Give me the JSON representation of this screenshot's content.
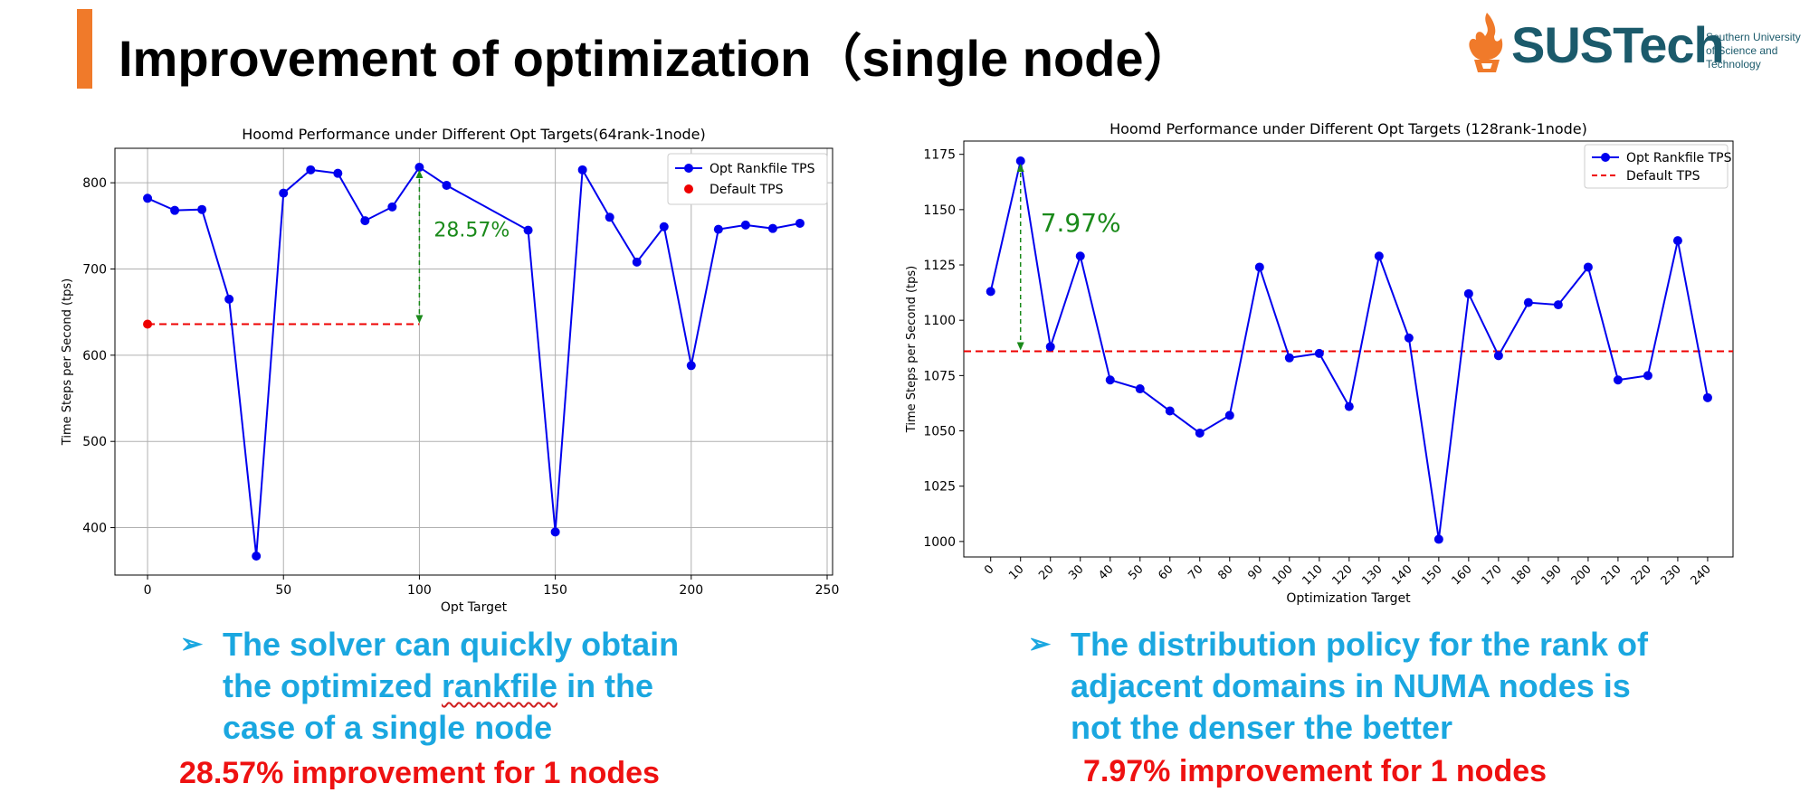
{
  "slide": {
    "title": "Improvement of optimization（single node）",
    "logo": {
      "name": "SUSTech",
      "sub": [
        "Southern University",
        "of Science and",
        "Technology"
      ]
    }
  },
  "colors": {
    "accent_orange": "#f07a2a",
    "logo_teal": "#1b5a6b",
    "bullet_blue": "#1aa7e0",
    "improvement_red": "#ee1111",
    "series_blue": "#0000ee",
    "default_red": "#ee0000",
    "annotation_green": "#1a8a1a"
  },
  "chart_data": [
    {
      "type": "line",
      "title": "Hoomd Performance under Different Opt Targets(64rank-1node)",
      "xlabel": "Opt Target",
      "ylabel": "Time Steps per Second (tps)",
      "xlim": [
        -12,
        252
      ],
      "ylim": [
        345,
        840
      ],
      "xticks": [
        0,
        50,
        100,
        150,
        200,
        250
      ],
      "yticks": [
        400,
        500,
        600,
        700,
        800
      ],
      "grid": true,
      "legend_position": "top-right",
      "legend": [
        "Opt Rankfile TPS",
        "Default TPS"
      ],
      "series": [
        {
          "name": "Opt Rankfile TPS",
          "x": [
            0,
            10,
            20,
            30,
            40,
            50,
            60,
            70,
            80,
            90,
            100,
            110,
            140,
            150,
            160,
            170,
            180,
            190,
            200,
            210,
            220,
            230,
            240
          ],
          "values": [
            782,
            768,
            769,
            665,
            367,
            788,
            815,
            811,
            756,
            772,
            818,
            797,
            745,
            395,
            815,
            760,
            708,
            749,
            588,
            746,
            751,
            747,
            753
          ]
        },
        {
          "name": "Default TPS",
          "x": [
            0
          ],
          "values": [
            636
          ]
        }
      ],
      "baseline": {
        "value": 636,
        "x_range": [
          0,
          100
        ]
      },
      "annotation": {
        "text": "28.57%",
        "x": 100,
        "from": 818,
        "to": 636
      }
    },
    {
      "type": "line",
      "title": "Hoomd Performance under Different Opt Targets (128rank-1node)",
      "xlabel": "Optimization Target",
      "ylabel": "Time Steps per Second (tps)",
      "ylim": [
        993,
        1181
      ],
      "categories": [
        "0",
        "10",
        "20",
        "30",
        "40",
        "50",
        "60",
        "70",
        "80",
        "90",
        "100",
        "110",
        "120",
        "130",
        "140",
        "150",
        "160",
        "170",
        "180",
        "190",
        "200",
        "210",
        "220",
        "230",
        "240"
      ],
      "yticks": [
        1000,
        1025,
        1050,
        1075,
        1100,
        1125,
        1150,
        1175
      ],
      "grid": false,
      "legend_position": "top-right",
      "legend": [
        "Opt Rankfile TPS",
        "Default TPS"
      ],
      "series": [
        {
          "name": "Opt Rankfile TPS",
          "values": [
            1113,
            1172,
            1088,
            1129,
            1073,
            1069,
            1059,
            1049,
            1057,
            1124,
            1083,
            1085,
            1061,
            1129,
            1092,
            1001,
            1112,
            1084,
            1108,
            1107,
            1124,
            1073,
            1075,
            1136,
            1065
          ]
        }
      ],
      "baseline": {
        "name": "Default TPS",
        "value": 1086
      },
      "annotation": {
        "text": "7.97%",
        "category": "10",
        "from": 1172,
        "to": 1086
      }
    }
  ],
  "left_panel": {
    "bullet": [
      "The solver can quickly obtain",
      "the optimized ",
      "rankfile",
      " in the",
      "case of a single node"
    ],
    "improvement": "28.57% improvement for 1 nodes"
  },
  "right_panel": {
    "bullet": [
      "The distribution policy for the rank of",
      "adjacent domains in NUMA nodes is",
      "not the denser the better"
    ],
    "improvement": "7.97% improvement for 1 nodes"
  }
}
